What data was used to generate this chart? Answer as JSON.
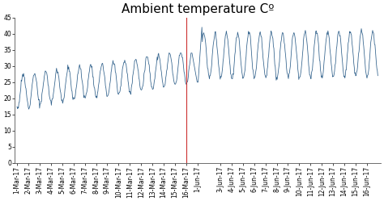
{
  "title": "Ambient temperature Cº",
  "ylim": [
    0,
    45
  ],
  "yticks": [
    0,
    5,
    10,
    15,
    20,
    25,
    30,
    35,
    40,
    45
  ],
  "march_labels": [
    "1-Mar-17",
    "2-Mar-17",
    "3-Mar-17",
    "4-Mar-17",
    "5-Mar-17",
    "6-Mar-17",
    "7-Mar-17",
    "8-Mar-17",
    "9-Mar-17",
    "10-Mar-17",
    "11-Mar-17",
    "12-Mar-17",
    "13-Mar-17",
    "14-Mar-17",
    "15-Mar-17",
    "16-Mar-17"
  ],
  "june_labels": [
    "1-Jun-17",
    "3-Jun-17",
    "4-Jun-17",
    "5-Jun-17",
    "6-Jun-17",
    "7-Jun-17",
    "8-Jun-17",
    "9-Jun-17",
    "10-Jun-17",
    "11-Jun-17",
    "12-Jun-17",
    "13-Jun-17",
    "14-Jun-17",
    "15-Jun-17",
    "16-Jun-17"
  ],
  "line_color": "#2E5F8A",
  "vline_color": "#CC3333",
  "background_color": "#FFFFFF",
  "title_fontsize": 11,
  "tick_fontsize": 5.5,
  "march_base": 22,
  "march_trend": 0.5,
  "march_amp": 5,
  "june_base": 33,
  "june_amp": 7
}
